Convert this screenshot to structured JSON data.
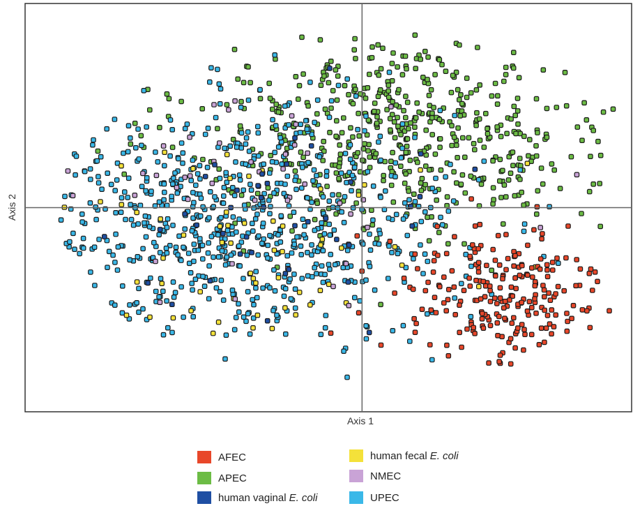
{
  "chart_data": {
    "type": "scatter",
    "xlabel": "Axis 1",
    "ylabel": "Axis 2",
    "xlim": [
      -1.0,
      0.8
    ],
    "ylim": [
      -0.65,
      0.65
    ],
    "grid": false,
    "reference_lines": {
      "x": 0,
      "y": 0
    },
    "legend_position": "bottom",
    "series": [
      {
        "name": "AFEC",
        "color": "#e8472a",
        "center": [
          0.42,
          -0.28
        ],
        "spread": [
          0.16,
          0.12
        ],
        "count": 230
      },
      {
        "name": "APEC",
        "color": "#6cbc45",
        "center": [
          0.12,
          0.25
        ],
        "spread": [
          0.32,
          0.17
        ],
        "count": 560
      },
      {
        "name": "human vaginal E. coli",
        "color": "#1f4fa3",
        "center": [
          -0.35,
          -0.05
        ],
        "spread": [
          0.3,
          0.18
        ],
        "count": 40
      },
      {
        "name": "human fecal E. coli",
        "color": "#f4e13a",
        "center": [
          -0.35,
          -0.12
        ],
        "spread": [
          0.35,
          0.18
        ],
        "count": 60
      },
      {
        "name": "NMEC",
        "color": "#c9a3d6",
        "center": [
          -0.28,
          0.05
        ],
        "spread": [
          0.3,
          0.14
        ],
        "count": 45
      },
      {
        "name": "UPEC",
        "color": "#3ab8e8",
        "center": [
          -0.38,
          -0.05
        ],
        "spread": [
          0.33,
          0.19
        ],
        "count": 720
      }
    ]
  },
  "legend": {
    "items": [
      {
        "prefix": "AFEC",
        "italic": "",
        "color": "#e8472a"
      },
      {
        "prefix": "APEC",
        "italic": "",
        "color": "#6cbc45"
      },
      {
        "prefix": "human vaginal",
        "italic": "E. coli",
        "color": "#1f4fa3"
      },
      {
        "prefix": "human fecal",
        "italic": "E. coli",
        "color": "#f4e13a"
      },
      {
        "prefix": "NMEC",
        "italic": "",
        "color": "#c9a3d6"
      },
      {
        "prefix": "UPEC",
        "italic": "",
        "color": "#3ab8e8"
      }
    ]
  }
}
